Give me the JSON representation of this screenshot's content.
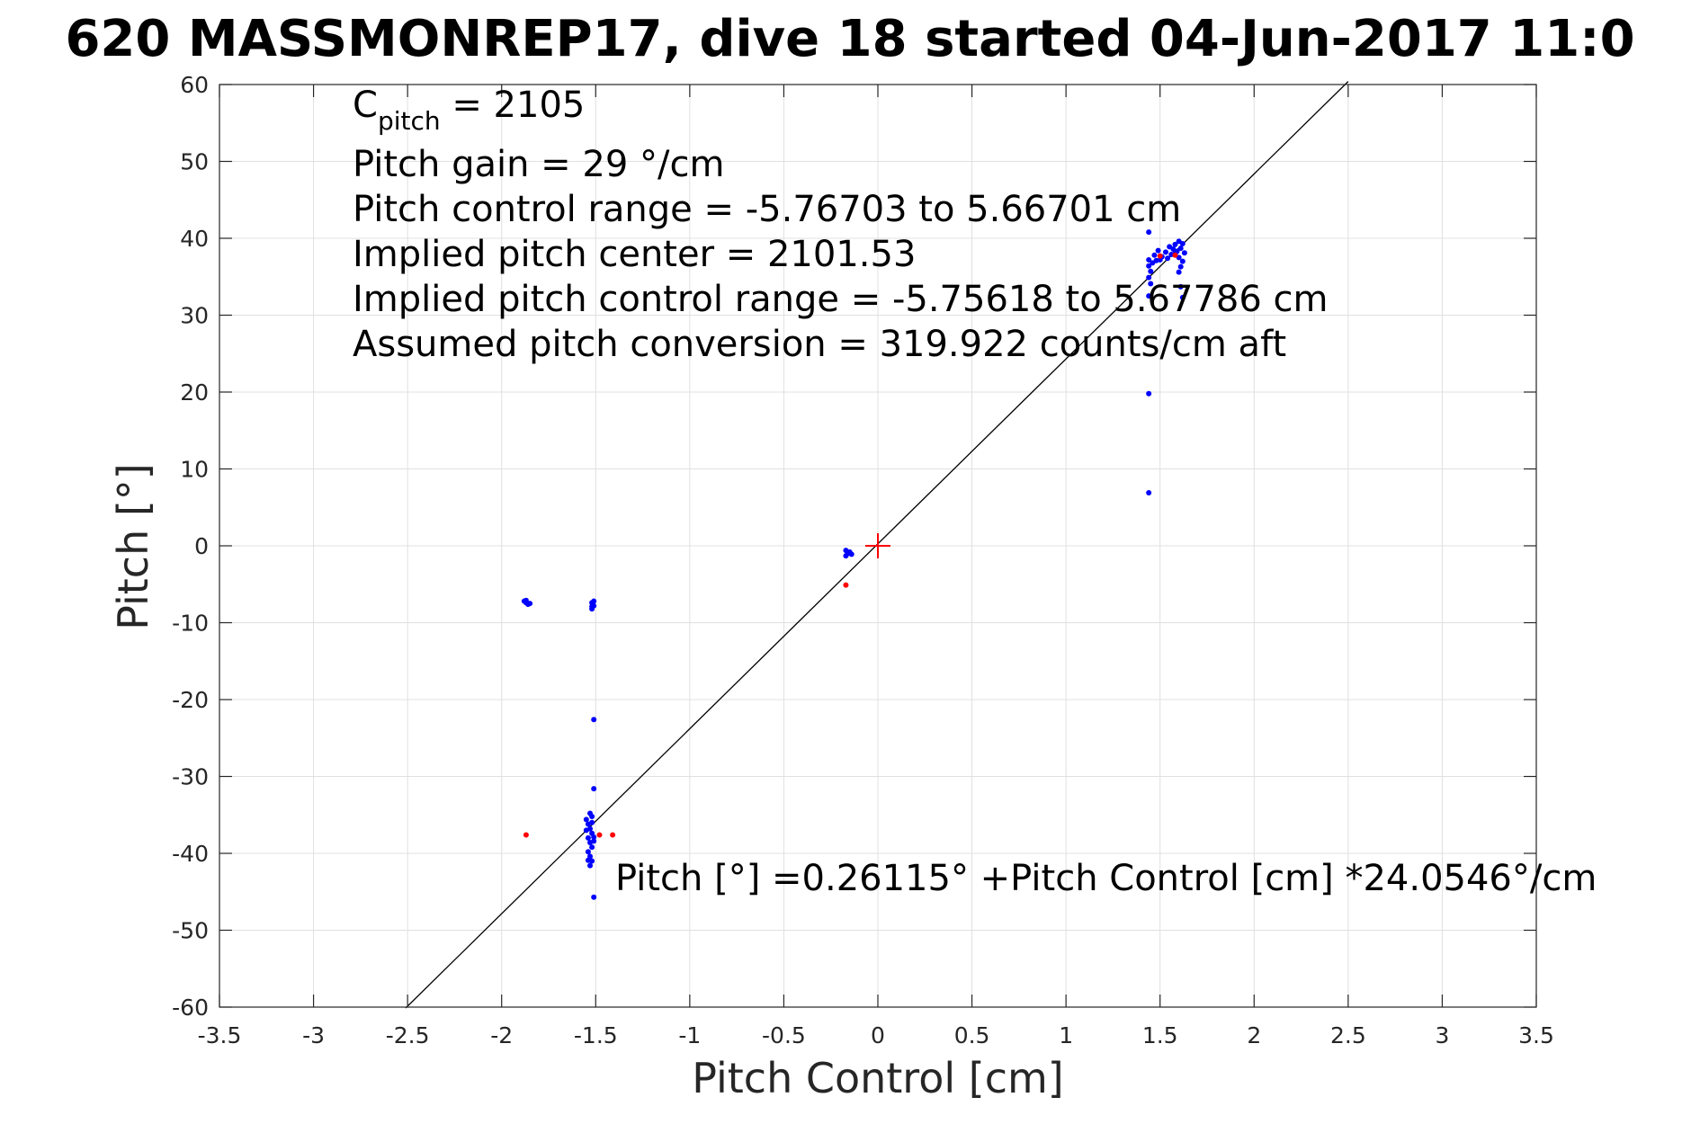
{
  "chart_data": {
    "type": "scatter",
    "title": "620 MASSMONREP17, dive 18 started 04-Jun-2017 11:0",
    "xlabel": "Pitch Control [cm]",
    "ylabel": "Pitch [°]",
    "xlim": [
      -3.5,
      3.5
    ],
    "ylim": [
      -60,
      60
    ],
    "xticks": [
      -3.5,
      -3,
      -2.5,
      -2,
      -1.5,
      -1,
      -0.5,
      0,
      0.5,
      1,
      1.5,
      2,
      2.5,
      3,
      3.5
    ],
    "yticks": [
      -60,
      -50,
      -40,
      -30,
      -20,
      -10,
      0,
      10,
      20,
      30,
      40,
      50,
      60
    ],
    "xtick_labels": [
      "-3.5",
      "-3",
      "-2.5",
      "-2",
      "-1.5",
      "-1",
      "-0.5",
      "0",
      "0.5",
      "1",
      "1.5",
      "2",
      "2.5",
      "3",
      "3.5"
    ],
    "ytick_labels": [
      "-60",
      "-50",
      "-40",
      "-30",
      "-20",
      "-10",
      "0",
      "10",
      "20",
      "30",
      "40",
      "50",
      "60"
    ],
    "grid": true,
    "colors": {
      "blue": "#0000ff",
      "red": "#ff0000",
      "fit_line": "#000000",
      "grid": "#e0e0e0",
      "axes": "#262626"
    },
    "series": [
      {
        "color": "#0000ff",
        "marker": "dot",
        "points": [
          [
            -1.88,
            -7.2
          ],
          [
            -1.87,
            -7.4
          ],
          [
            -1.86,
            -7.6
          ],
          [
            -1.87,
            -7.1
          ],
          [
            -1.85,
            -7.5
          ],
          [
            -1.52,
            -7.4
          ],
          [
            -1.51,
            -7.8
          ],
          [
            -1.52,
            -8.2
          ],
          [
            -1.51,
            -7.2
          ],
          [
            -1.52,
            -7.9
          ],
          [
            -1.51,
            -22.6
          ],
          [
            -1.51,
            -31.6
          ],
          [
            -1.55,
            -35.6
          ],
          [
            -1.54,
            -36.2
          ],
          [
            -1.53,
            -36.8
          ],
          [
            -1.52,
            -37.4
          ],
          [
            -1.54,
            -38.0
          ],
          [
            -1.53,
            -38.6
          ],
          [
            -1.52,
            -39.2
          ],
          [
            -1.54,
            -39.8
          ],
          [
            -1.53,
            -40.4
          ],
          [
            -1.52,
            -41.0
          ],
          [
            -1.53,
            -41.6
          ],
          [
            -1.55,
            -37.0
          ],
          [
            -1.51,
            -38.4
          ],
          [
            -1.53,
            -34.8
          ],
          [
            -1.52,
            -36.0
          ],
          [
            -1.51,
            -37.9
          ],
          [
            -1.54,
            -40.9
          ],
          [
            -1.52,
            -35.2
          ],
          [
            -1.51,
            -45.7
          ],
          [
            -0.17,
            -0.6
          ],
          [
            -0.16,
            -1.0
          ],
          [
            -0.17,
            -1.3
          ],
          [
            -0.15,
            -0.8
          ],
          [
            -0.14,
            -1.1
          ],
          [
            1.44,
            40.8
          ],
          [
            1.44,
            37.2
          ],
          [
            1.44,
            36.4
          ],
          [
            1.45,
            35.7
          ],
          [
            1.44,
            34.9
          ],
          [
            1.45,
            34.1
          ],
          [
            1.44,
            32.5
          ],
          [
            1.44,
            19.8
          ],
          [
            1.44,
            6.9
          ],
          [
            1.47,
            37.8
          ],
          [
            1.49,
            38.4
          ],
          [
            1.51,
            37.6
          ],
          [
            1.53,
            38.2
          ],
          [
            1.55,
            38.9
          ],
          [
            1.56,
            37.9
          ],
          [
            1.57,
            38.6
          ],
          [
            1.58,
            39.2
          ],
          [
            1.59,
            38.3
          ],
          [
            1.6,
            39.6
          ],
          [
            1.61,
            38.7
          ],
          [
            1.62,
            39.3
          ],
          [
            1.6,
            37.5
          ],
          [
            1.62,
            37.0
          ],
          [
            1.61,
            36.3
          ],
          [
            1.6,
            35.6
          ],
          [
            1.61,
            33.7
          ],
          [
            1.62,
            32.3
          ],
          [
            1.5,
            37.2
          ],
          [
            1.54,
            37.4
          ],
          [
            1.58,
            38.0
          ],
          [
            1.63,
            38.1
          ],
          [
            1.46,
            36.8
          ],
          [
            1.48,
            37.1
          ]
        ]
      },
      {
        "color": "#ff0000",
        "marker": "dot",
        "points": [
          [
            -1.87,
            -37.6
          ],
          [
            -1.48,
            -37.6
          ],
          [
            -1.41,
            -37.6
          ],
          [
            -0.17,
            -5.1
          ],
          [
            1.5,
            37.7
          ],
          [
            1.58,
            37.8
          ]
        ]
      },
      {
        "color": "#ff0000",
        "marker": "plus",
        "points": [
          [
            0,
            0
          ]
        ]
      }
    ],
    "fit_line": {
      "intercept": 0.26115,
      "slope": 24.0546,
      "x_range": [
        -2.51,
        2.5
      ]
    },
    "annotations": {
      "c_pitch_main": "C",
      "c_pitch_sub": "pitch",
      "c_pitch_value": " = 2105",
      "line_2": "Pitch gain = 29 °/cm",
      "line_3": "Pitch control range = -5.76703 to 5.66701 cm",
      "line_4": "Implied pitch center = 2101.53",
      "line_5": "Implied pitch control range = -5.75618 to 5.67786 cm",
      "line_6": "Assumed pitch conversion = 319.922 counts/cm aft",
      "fit_equation": "Pitch [°] =0.26115° +Pitch Control [cm] *24.0546°/cm"
    }
  }
}
